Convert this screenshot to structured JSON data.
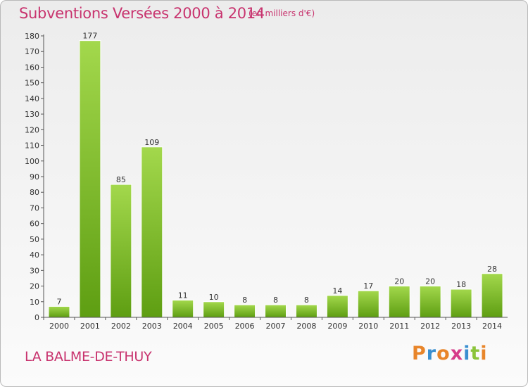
{
  "chart_data": {
    "type": "bar",
    "title": "Subventions Versées 2000 à 2014",
    "subtitle": "(en milliers d'€)",
    "categories": [
      "2000",
      "2001",
      "2002",
      "2003",
      "2004",
      "2005",
      "2006",
      "2007",
      "2008",
      "2009",
      "2010",
      "2011",
      "2012",
      "2013",
      "2014"
    ],
    "values": [
      7,
      177,
      85,
      109,
      11,
      10,
      8,
      8,
      8,
      14,
      17,
      20,
      20,
      18,
      28
    ],
    "ylim": [
      0,
      180
    ],
    "yticks": [
      0,
      10,
      20,
      30,
      40,
      50,
      60,
      70,
      80,
      90,
      100,
      110,
      120,
      130,
      140,
      150,
      160,
      170,
      180
    ],
    "grid": false,
    "bar_color": "#7cc22a"
  },
  "footer": {
    "commune": "LA BALME-DE-THUY",
    "logo": "Proxiti"
  },
  "colors": {
    "title": "#c8336e",
    "logo_letters": [
      "#e8852a",
      "#3a8fd0",
      "#e8852a",
      "#d63c8a",
      "#3a8fd0",
      "#8bc43a",
      "#e8852a"
    ]
  }
}
